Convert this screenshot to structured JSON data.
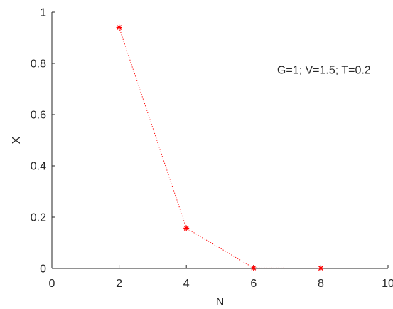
{
  "chart_data": {
    "type": "line",
    "title": "",
    "xlabel": "N",
    "ylabel": "X",
    "xlim": [
      0,
      10
    ],
    "ylim": [
      0,
      1
    ],
    "xticks": [
      0,
      2,
      4,
      6,
      8,
      10
    ],
    "yticks": [
      0,
      0.2,
      0.4,
      0.6,
      0.8,
      1
    ],
    "xtick_labels": [
      "0",
      "2",
      "4",
      "6",
      "8",
      "10"
    ],
    "ytick_labels": [
      "0",
      "0.2",
      "0.4",
      "0.6",
      "0.8",
      "1"
    ],
    "grid": false,
    "series": [
      {
        "x": [
          2,
          4,
          6,
          8
        ],
        "y": [
          0.94,
          0.157,
          0.002,
          0.001
        ],
        "color": "#ff0000",
        "line_style": "dotted",
        "marker": "asterisk"
      }
    ],
    "annotation": {
      "text": "G=1; V=1.5; T=0.2",
      "x": 6.7,
      "y": 0.76
    }
  }
}
